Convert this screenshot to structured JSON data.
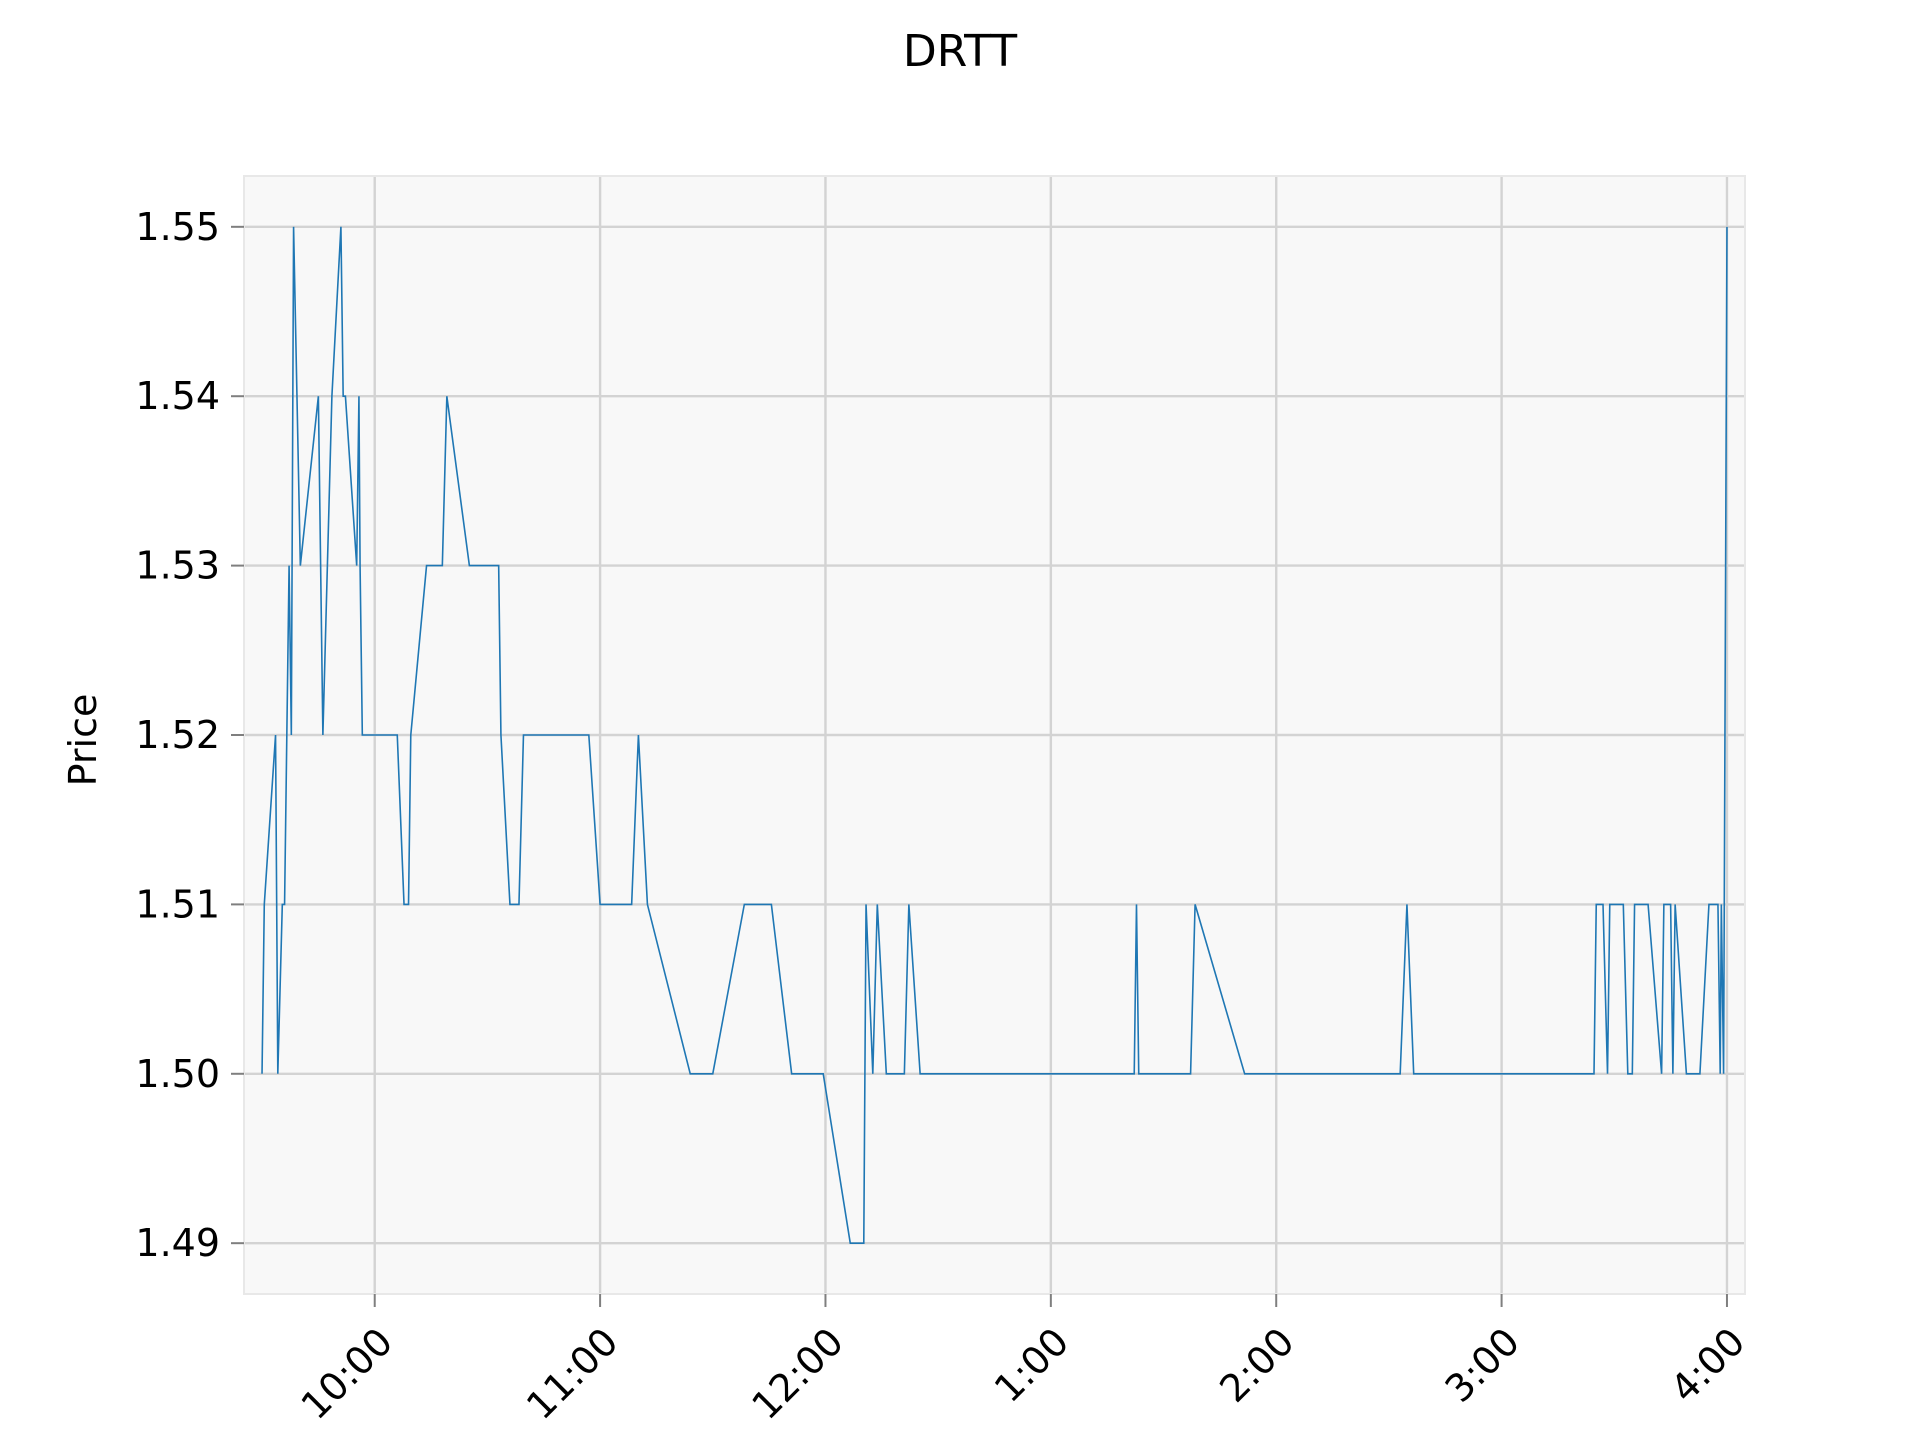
{
  "chart_data": {
    "type": "line",
    "title": "DRTT",
    "xlabel": "",
    "ylabel": "Price",
    "ylim": [
      1.487,
      1.553
    ],
    "xlim": [
      9.42,
      16.08
    ],
    "grid": true,
    "colors": {
      "line": "#1f77b4",
      "plot_background": "#f8f8f8",
      "grid": "#d3d3d3",
      "spine": "#e8e8e8",
      "tick": "#7f7f7f"
    },
    "y_ticks": [
      {
        "value": 1.49,
        "label": "1.49"
      },
      {
        "value": 1.5,
        "label": "1.50"
      },
      {
        "value": 1.51,
        "label": "1.51"
      },
      {
        "value": 1.52,
        "label": "1.52"
      },
      {
        "value": 1.53,
        "label": "1.53"
      },
      {
        "value": 1.54,
        "label": "1.54"
      },
      {
        "value": 1.55,
        "label": "1.55"
      }
    ],
    "x_ticks": [
      {
        "value": 10,
        "label": "10:00"
      },
      {
        "value": 11,
        "label": "11:00"
      },
      {
        "value": 12,
        "label": "12:00"
      },
      {
        "value": 13,
        "label": "1:00"
      },
      {
        "value": 14,
        "label": "2:00"
      },
      {
        "value": 15,
        "label": "3:00"
      },
      {
        "value": 16,
        "label": "4:00"
      }
    ],
    "series": [
      {
        "name": "DRTT",
        "x": [
          9.5,
          9.51,
          9.56,
          9.57,
          9.59,
          9.6,
          9.62,
          9.63,
          9.64,
          9.655,
          9.67,
          9.75,
          9.77,
          9.81,
          9.85,
          9.86,
          9.87,
          9.92,
          9.93,
          9.935,
          9.945,
          10.1,
          10.13,
          10.15,
          10.16,
          10.23,
          10.3,
          10.32,
          10.42,
          10.55,
          10.56,
          10.6,
          10.64,
          10.66,
          10.95,
          11.0,
          11.14,
          11.17,
          11.21,
          11.4,
          11.5,
          11.64,
          11.76,
          11.85,
          11.99,
          12.11,
          12.17,
          12.18,
          12.21,
          12.23,
          12.27,
          12.35,
          12.37,
          12.42,
          13.37,
          13.38,
          13.39,
          13.62,
          13.64,
          13.86,
          14.55,
          14.58,
          14.61,
          15.41,
          15.42,
          15.45,
          15.47,
          15.48,
          15.54,
          15.56,
          15.58,
          15.59,
          15.65,
          15.71,
          15.72,
          15.75,
          15.76,
          15.77,
          15.82,
          15.88,
          15.92,
          15.96,
          15.97,
          15.975,
          15.985,
          16.0
        ],
        "values": [
          1.5,
          1.51,
          1.52,
          1.5,
          1.51,
          1.51,
          1.53,
          1.52,
          1.55,
          1.54,
          1.53,
          1.54,
          1.52,
          1.54,
          1.55,
          1.54,
          1.54,
          1.53,
          1.54,
          1.53,
          1.52,
          1.52,
          1.51,
          1.51,
          1.52,
          1.53,
          1.53,
          1.54,
          1.53,
          1.53,
          1.52,
          1.51,
          1.51,
          1.52,
          1.52,
          1.51,
          1.51,
          1.52,
          1.51,
          1.5,
          1.5,
          1.51,
          1.51,
          1.5,
          1.5,
          1.49,
          1.49,
          1.51,
          1.5,
          1.51,
          1.5,
          1.5,
          1.51,
          1.5,
          1.5,
          1.51,
          1.5,
          1.5,
          1.51,
          1.5,
          1.5,
          1.51,
          1.5,
          1.5,
          1.51,
          1.51,
          1.5,
          1.51,
          1.51,
          1.5,
          1.5,
          1.51,
          1.51,
          1.5,
          1.51,
          1.51,
          1.5,
          1.51,
          1.5,
          1.5,
          1.51,
          1.51,
          1.5,
          1.51,
          1.5,
          1.55
        ]
      }
    ]
  }
}
